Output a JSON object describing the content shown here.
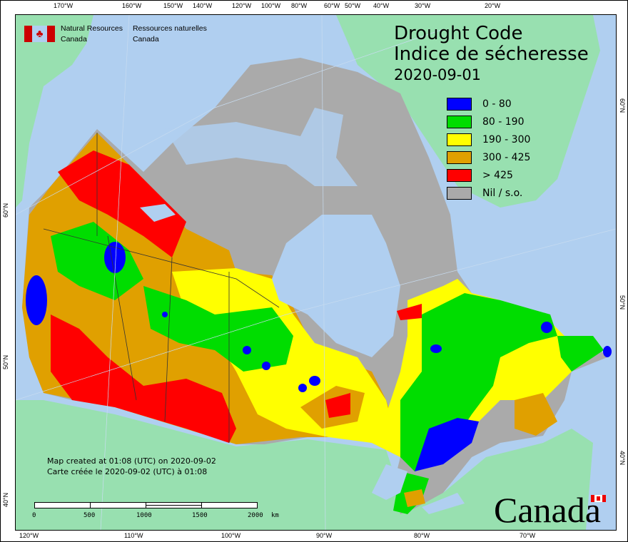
{
  "title": {
    "line1": "Drought Code",
    "line2": "Indice de sécheresse",
    "date": "2020-09-01"
  },
  "agency": {
    "en_line1": "Natural Resources",
    "en_line2": "Canada",
    "fr_line1": "Ressources naturelles",
    "fr_line2": "Canada"
  },
  "legend": [
    {
      "label": "0 - 80",
      "color": "#0000ff"
    },
    {
      "label": "80 - 190",
      "color": "#00dd00"
    },
    {
      "label": "190 - 300",
      "color": "#ffff00"
    },
    {
      "label": "300 - 425",
      "color": "#e0a000"
    },
    {
      "label": "> 425",
      "color": "#ff0000"
    },
    {
      "label": "Nil / s.o.",
      "color": "#aaaaaa"
    }
  ],
  "credit": {
    "en": "Map created at 01:08 (UTC) on 2020-09-02",
    "fr": "Carte créée le 2020-09-02 (UTC) à 01:08"
  },
  "scale": {
    "labels": [
      "0",
      "500",
      "1000",
      "1500",
      "2000"
    ],
    "unit": "km"
  },
  "axes": {
    "top": [
      "170°W",
      "160°W",
      "150°W",
      "140°W",
      "120°W",
      "100°W",
      "80°W",
      "60°W",
      "50°W",
      "40°W",
      "30°W",
      "20°W"
    ],
    "bottom": [
      "120°W",
      "110°W",
      "100°W",
      "90°W",
      "80°W",
      "70°W"
    ],
    "left": [
      "60°N",
      "50°N",
      "40°N"
    ],
    "right": [
      "60°N",
      "50°N",
      "40°N"
    ]
  },
  "wordmark": "Canada",
  "colors": {
    "ocean": "#b0cff0",
    "land": "#98e0b0"
  }
}
